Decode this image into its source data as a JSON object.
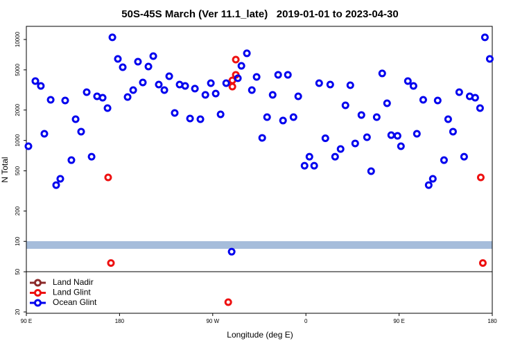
{
  "chart_data": {
    "type": "scatter",
    "title": "50S-45S March (Ver 11.1_late)   2019-01-01 to 2023-04-30",
    "x_label": "Longitude (deg E)",
    "y_label": "N Total",
    "log_y": true,
    "legend": "bottom-left",
    "xlim": [
      90,
      540
    ],
    "xticks": [
      {
        "value": 90,
        "label": "90 E"
      },
      {
        "value": 180,
        "label": "180"
      },
      {
        "value": 270,
        "label": "90 W"
      },
      {
        "value": 360,
        "label": "0"
      },
      {
        "value": 450,
        "label": "90 E"
      },
      {
        "value": 540,
        "label": "180"
      }
    ],
    "ylim": [
      19.4,
      13500
    ],
    "yticks": [
      20,
      50,
      100,
      200,
      500,
      1000,
      2000,
      5000,
      10000
    ],
    "series": [
      {
        "name": "Land Nadir",
        "color": "#8b2a2a",
        "x": [],
        "values": []
      },
      {
        "name": "Land Glint",
        "color": "#ee1111",
        "x": [
          169,
          171.7,
          289,
          289,
          292.3,
          292.3,
          285,
          528.9,
          530.9
        ],
        "values": [
          430,
          61,
          3412,
          3934,
          4468,
          6324,
          25,
          430,
          61
        ]
      },
      {
        "name": "Ocean Glint",
        "color": "#0000ee",
        "x": [
          92,
          98.7,
          104,
          107.4,
          113.5,
          118.8,
          122.8,
          127.5,
          133.5,
          137.6,
          142.9,
          148.3,
          153,
          158.3,
          163.7,
          168.4,
          173.1,
          178.4,
          183.1,
          187.8,
          193.2,
          197.8,
          202.5,
          207.9,
          212.6,
          217.9,
          223.3,
          228,
          233.3,
          238,
          243.4,
          248.1,
          252.8,
          258.1,
          262.9,
          268.2,
          272.9,
          277.6,
          283,
          288.3,
          294.3,
          297.7,
          303,
          307.8,
          312.4,
          317.8,
          322.5,
          327.9,
          333.2,
          337.9,
          342.6,
          348,
          352.6,
          358.7,
          363.4,
          368,
          372.8,
          378.8,
          383.5,
          388.2,
          393.5,
          398.2,
          402.9,
          407.6,
          413.6,
          419,
          423,
          428.4,
          433.7,
          438.4,
          442.4,
          448.5,
          451.8,
          458.5,
          463.9,
          467.2,
          473.3,
          478.6,
          482.6,
          487.3,
          493.4,
          497.4,
          502.1,
          508.1,
          512.8,
          518.2,
          523.5,
          528.2,
          532.9,
          537.6
        ],
        "values": [
          876,
          3872,
          3467,
          1164,
          2528,
          361,
          417,
          2488,
          638,
          1624,
          1222,
          3006,
          690,
          2736,
          2648,
          2090,
          10496,
          6424,
          5312,
          2692,
          3154,
          6026,
          3750,
          5400,
          6840,
          3580,
          3154,
          4326,
          1870,
          3580,
          3467,
          1648,
          3258,
          1624,
          2826,
          3692,
          2912,
          1812,
          3692,
          79,
          4130,
          5484,
          7296,
          3154,
          4256,
          1060,
          1702,
          2826,
          4468,
          1574,
          4468,
          1702,
          2736,
          562,
          690,
          562,
          3692,
          1050,
          3580,
          690,
          822,
          2228,
          3524,
          934,
          1786,
          1076,
          496,
          1702,
          4612,
          2334,
          1128,
          1110,
          876,
          3872,
          3467,
          1164,
          2528,
          361,
          417,
          2488,
          638,
          1624,
          1222,
          3006,
          690,
          2736,
          2648,
          2090,
          10496,
          6424
        ]
      }
    ]
  }
}
